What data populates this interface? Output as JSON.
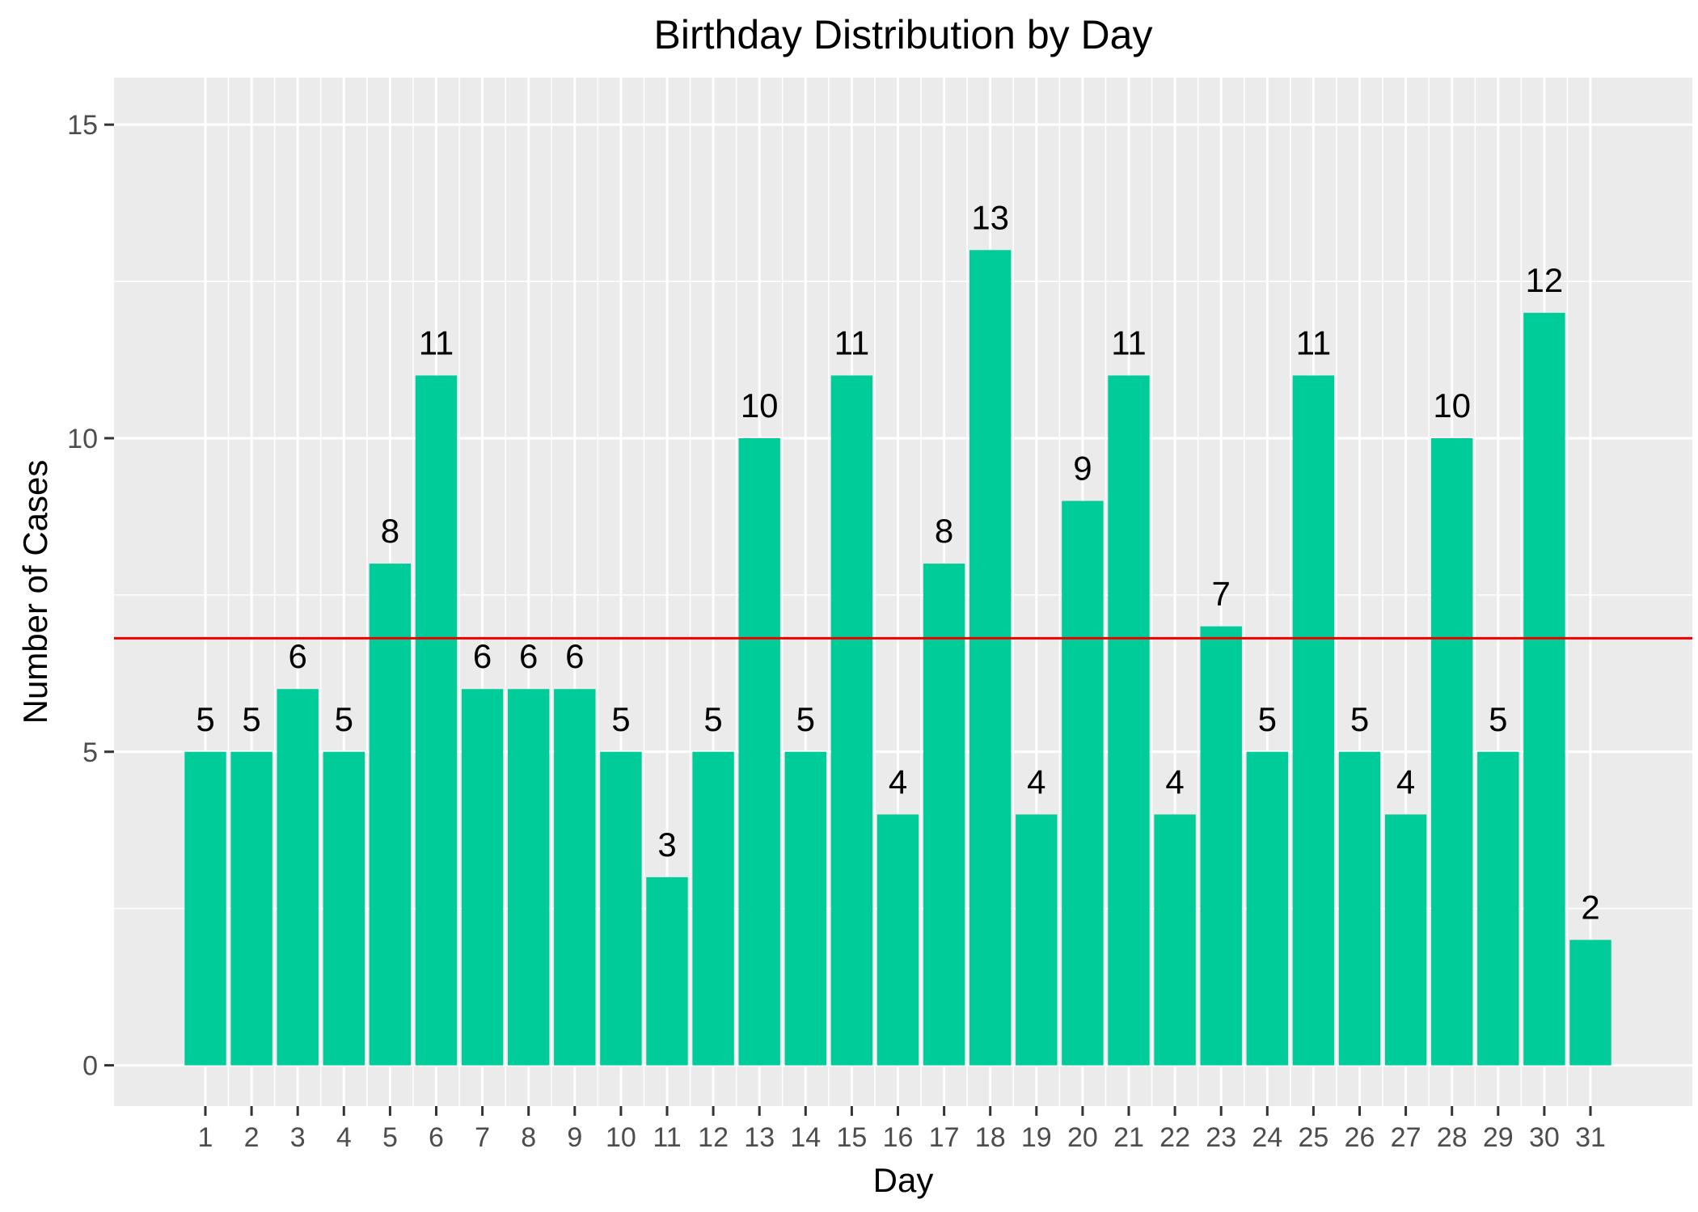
{
  "chart_data": {
    "type": "bar",
    "title": "Birthday Distribution by Day",
    "xlabel": "Day",
    "ylabel": "Number of Cases",
    "categories": [
      "1",
      "2",
      "3",
      "4",
      "5",
      "6",
      "7",
      "8",
      "9",
      "10",
      "11",
      "12",
      "13",
      "14",
      "15",
      "16",
      "17",
      "18",
      "19",
      "20",
      "21",
      "22",
      "23",
      "24",
      "25",
      "26",
      "27",
      "28",
      "29",
      "30",
      "31"
    ],
    "values": [
      5,
      5,
      6,
      5,
      8,
      11,
      6,
      6,
      6,
      5,
      3,
      5,
      10,
      5,
      11,
      4,
      8,
      13,
      4,
      9,
      11,
      4,
      7,
      5,
      11,
      5,
      4,
      10,
      5,
      12,
      2
    ],
    "yticks": [
      0,
      5,
      10,
      15
    ],
    "ylim": [
      -0.65,
      15.75
    ],
    "reference_line": {
      "y": 6.81
    },
    "grid": true,
    "legend": "none",
    "colors": {
      "bar": "#00CC99",
      "reference_line": "#EE0000",
      "panel_background": "#EBEBEB",
      "grid": "#FFFFFF",
      "axis_text": "#4D4D4D",
      "label_text": "#000000"
    }
  }
}
